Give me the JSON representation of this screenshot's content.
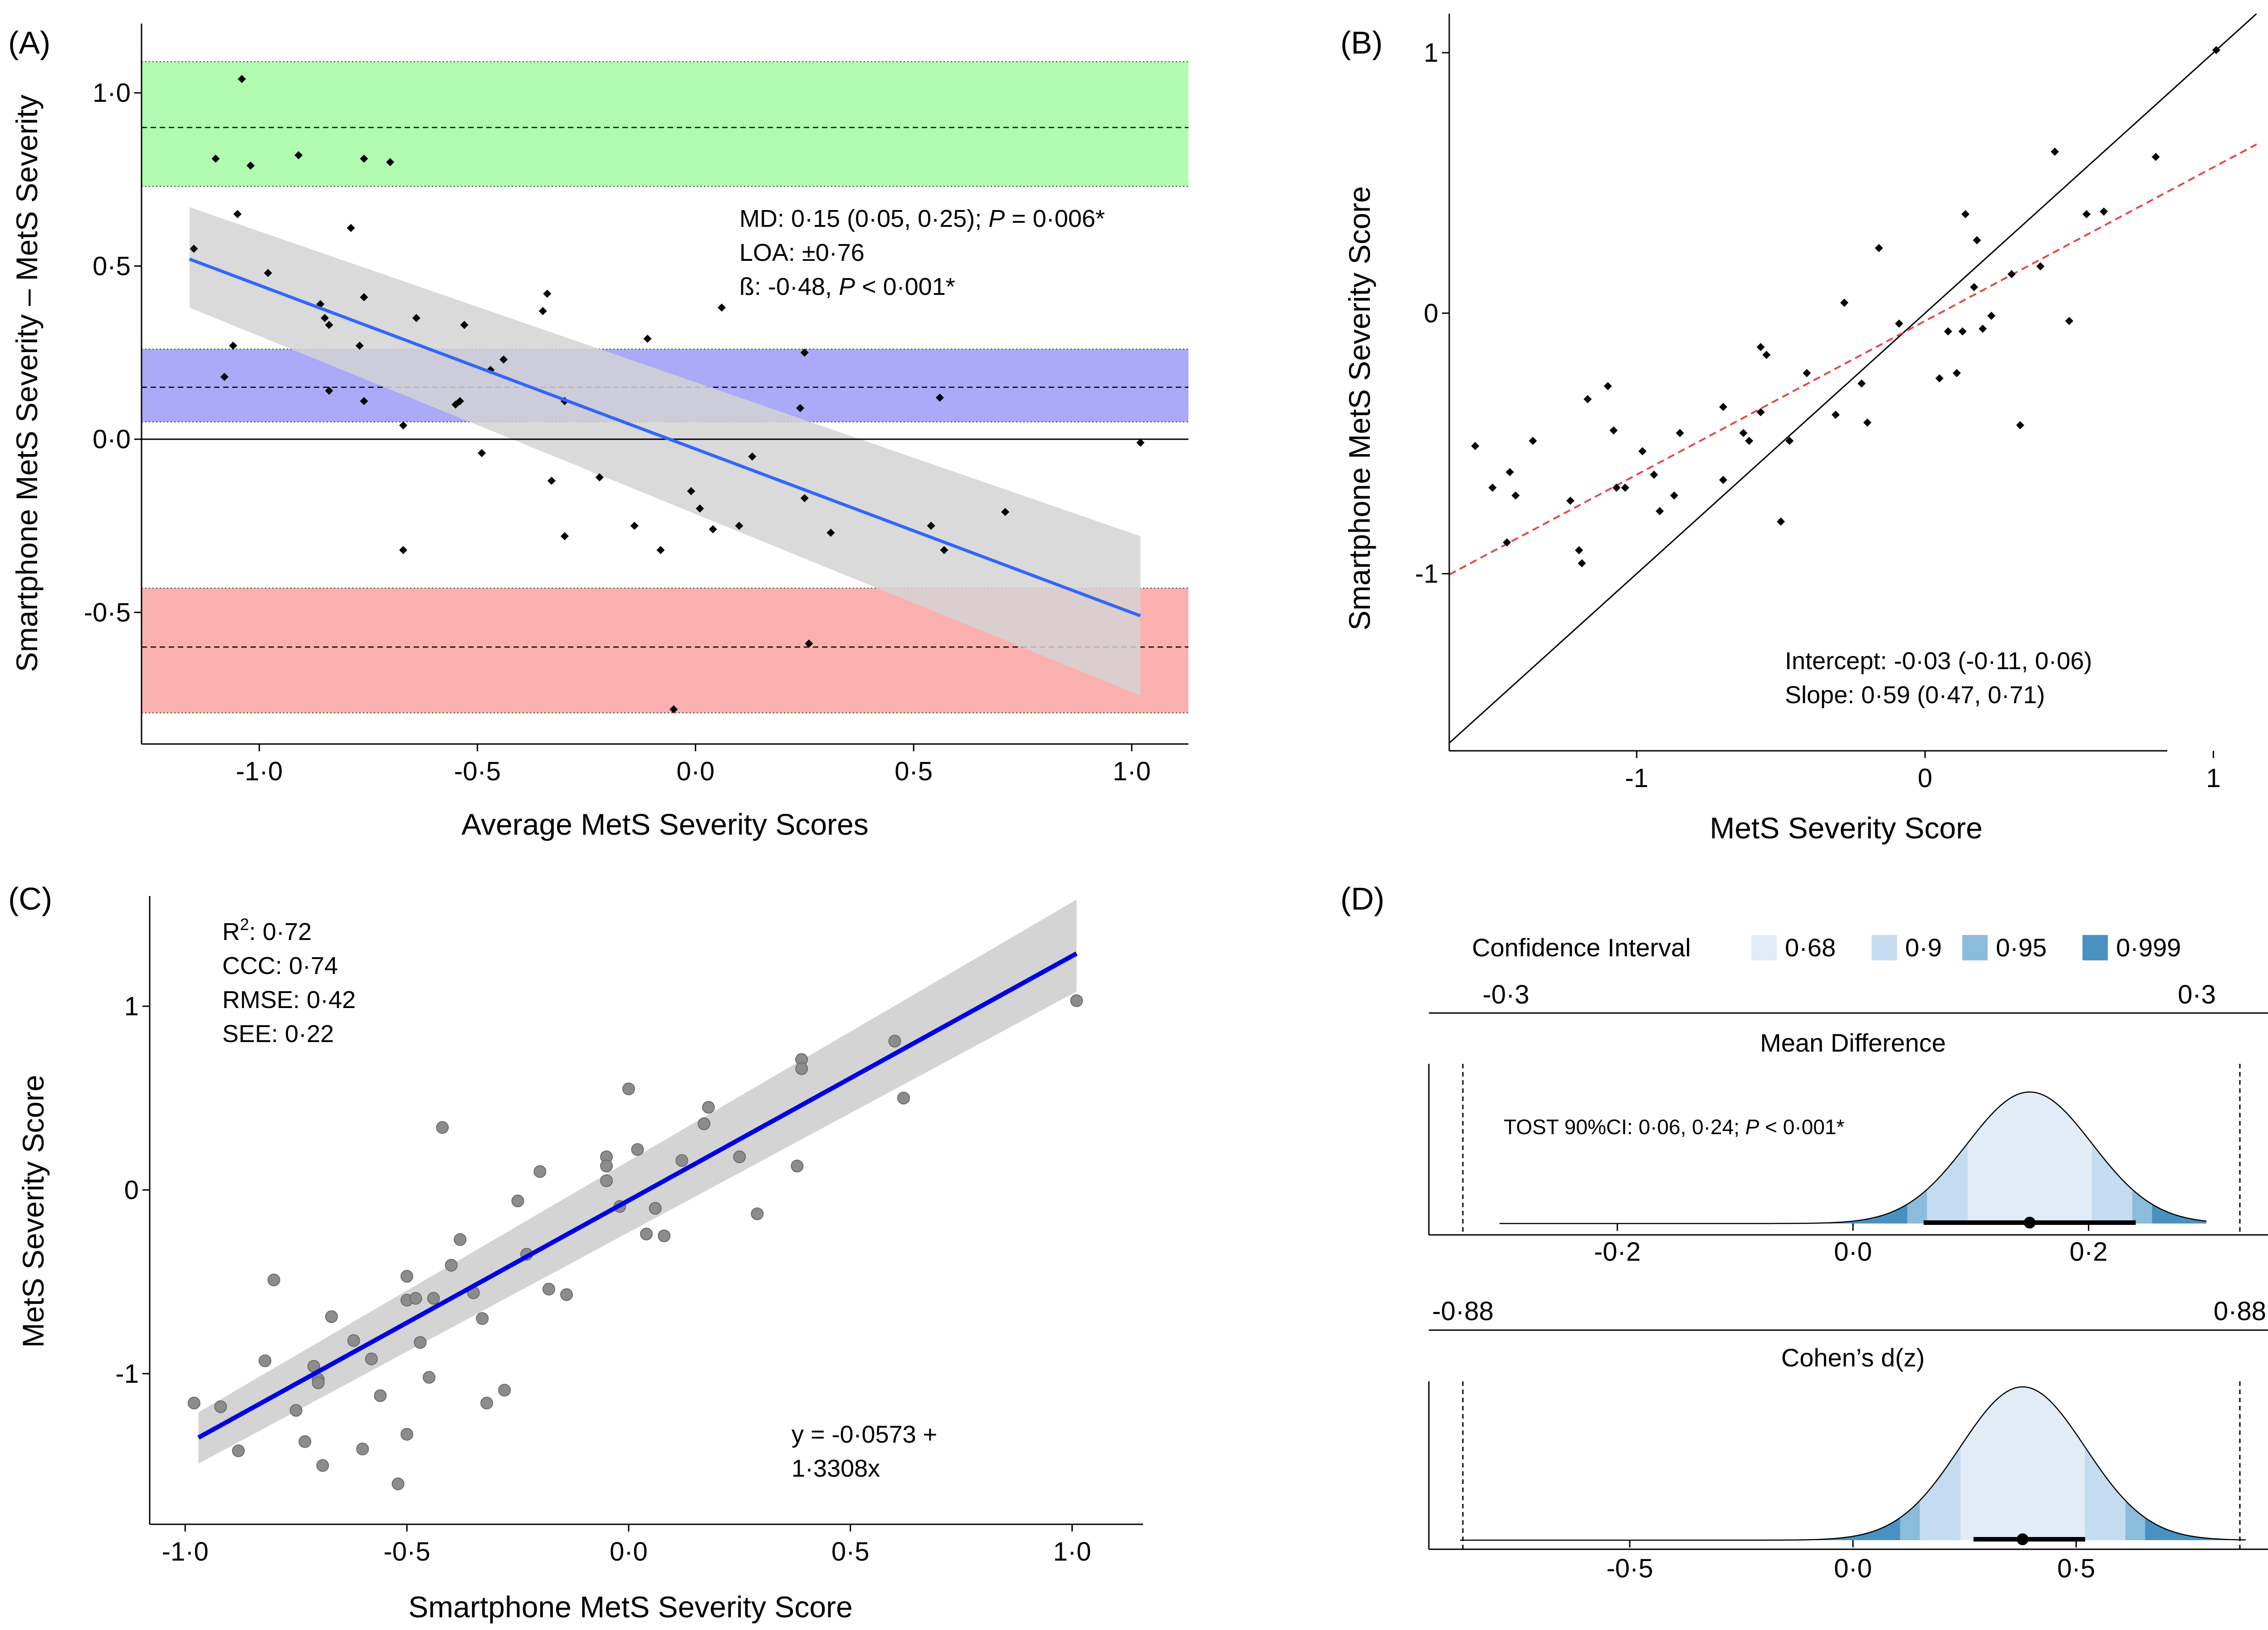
{
  "panels": {
    "A": {
      "letter": "(A)",
      "xlabel": "Average MetS Severity Scores",
      "ylabel": "Smartphone MetS Severity – MetS Severity",
      "xticks": [
        {
          "v": -1.0,
          "label": "-1·0"
        },
        {
          "v": -0.5,
          "label": "-0·5"
        },
        {
          "v": 0.0,
          "label": "0·0"
        },
        {
          "v": 0.5,
          "label": "0·5"
        },
        {
          "v": 1.0,
          "label": "1·0"
        }
      ],
      "yticks": [
        {
          "v": -0.5,
          "label": "-0·5"
        },
        {
          "v": 0.0,
          "label": "0·0"
        },
        {
          "v": 0.5,
          "label": "0·5"
        },
        {
          "v": 1.0,
          "label": "1·0"
        }
      ],
      "ann_line1_pre": "MD: 0·15 (0·05, 0·25); ",
      "ann_line1_p": "P",
      "ann_line1_post": " = 0·006*",
      "ann_line2": "LOA: ±0·76",
      "ann_line3_pre": "ß: -0·48, ",
      "ann_line3_p": "P",
      "ann_line3_post": " < 0·001*"
    },
    "B": {
      "letter": "(B)",
      "xlabel": "MetS Severity Score",
      "ylabel": "Smartphone MetS Severity Score",
      "xticks": [
        {
          "v": -1,
          "label": "-1"
        },
        {
          "v": 0,
          "label": "0"
        },
        {
          "v": 1,
          "label": "1"
        }
      ],
      "yticks": [
        {
          "v": -1,
          "label": "-1"
        },
        {
          "v": 0,
          "label": "0"
        },
        {
          "v": 1,
          "label": "1"
        }
      ],
      "ann_line1": "Intercept: -0·03 (-0·11, 0·06)",
      "ann_line2": "Slope: 0·59 (0·47, 0·71)"
    },
    "C": {
      "letter": "(C)",
      "xlabel": "Smartphone MetS Severity Score",
      "ylabel": "MetS Severity Score",
      "xticks": [
        {
          "v": -1.0,
          "label": "-1·0"
        },
        {
          "v": -0.5,
          "label": "-0·5"
        },
        {
          "v": 0.0,
          "label": "0·0"
        },
        {
          "v": 0.5,
          "label": "0·5"
        },
        {
          "v": 1.0,
          "label": "1·0"
        }
      ],
      "yticks": [
        {
          "v": -1,
          "label": "-1"
        },
        {
          "v": 0,
          "label": "0"
        },
        {
          "v": 1,
          "label": "1"
        }
      ],
      "stat_r2_pre": "R",
      "stat_r2_sup": "2",
      "stat_r2_post": ": 0·72",
      "stat_ccc": "CCC: 0·74",
      "stat_rmse": "RMSE: 0·42",
      "stat_see": "SEE: 0·22",
      "eq_line1": "y = -0·0573 +",
      "eq_line2": "1·3308x"
    },
    "D": {
      "letter": "(D)",
      "legend_title": "Confidence Interval",
      "legend_items": [
        "0·68",
        "0·9",
        "0·95",
        "0·999"
      ],
      "md_title": "Mean Difference",
      "md_top_left": "-0·3",
      "md_top_right": "0·3",
      "md_xticks": [
        {
          "v": -0.2,
          "label": "-0·2"
        },
        {
          "v": 0.0,
          "label": "0·0"
        },
        {
          "v": 0.2,
          "label": "0·2"
        }
      ],
      "md_tost_pre": "TOST 90%CI: 0·06, 0·24; ",
      "md_tost_p": "P",
      "md_tost_post": " < 0·001*",
      "d_title": "Cohen’s d(z)",
      "d_top_left": "-0·88",
      "d_top_right": "0·88",
      "d_xticks": [
        {
          "v": -0.5,
          "label": "-0·5"
        },
        {
          "v": 0.0,
          "label": "0·0"
        },
        {
          "v": 0.5,
          "label": "0·5"
        }
      ]
    }
  },
  "colors": {
    "upper_loa_band": "#b0fbb0",
    "bias_band": "#aaaaf8",
    "lower_loa_band": "#fbb0b0",
    "ribbon": "#d4d4d4",
    "fit_blue": "#3366ff",
    "fit_dark_blue": "#0000e0",
    "identity_red": "#e8453c",
    "ci_068": "#e1ecf7",
    "ci_09": "#c5dbef",
    "ci_095": "#8cbcdb",
    "ci_0999": "#4a91c2"
  },
  "chart_data": [
    {
      "panel": "A",
      "type": "scatter",
      "title": "",
      "xlabel": "Average MetS Severity Scores",
      "ylabel": "Smartphone MetS Severity – MetS Severity",
      "xlim": [
        -1.27,
        1.13
      ],
      "ylim": [
        -0.88,
        1.2
      ],
      "grid": false,
      "bands": {
        "upper_loa": {
          "mean": 0.9,
          "lo": 0.73,
          "hi": 1.09
        },
        "bias": {
          "mean": 0.15,
          "lo": 0.05,
          "hi": 0.26
        },
        "lower_loa": {
          "mean": -0.6,
          "lo": -0.79,
          "hi": -0.43
        }
      },
      "fit": {
        "x": [
          -1.16,
          1.02
        ],
        "y": [
          0.52,
          -0.51
        ],
        "ci_lo": [
          0.38,
          -0.74
        ],
        "ci_hi": [
          0.67,
          -0.28
        ]
      },
      "points": [
        [
          -1.04,
          1.04
        ],
        [
          -1.1,
          0.81
        ],
        [
          -1.02,
          0.79
        ],
        [
          -0.91,
          0.82
        ],
        [
          -0.76,
          0.81
        ],
        [
          -0.7,
          0.8
        ],
        [
          -1.15,
          0.55
        ],
        [
          -1.05,
          0.65
        ],
        [
          -0.79,
          0.61
        ],
        [
          -0.98,
          0.48
        ],
        [
          -0.86,
          0.39
        ],
        [
          -0.85,
          0.35
        ],
        [
          -0.84,
          0.33
        ],
        [
          -0.76,
          0.41
        ],
        [
          -0.77,
          0.27
        ],
        [
          -0.64,
          0.35
        ],
        [
          -0.53,
          0.33
        ],
        [
          -0.35,
          0.37
        ],
        [
          -0.34,
          0.42
        ],
        [
          -0.11,
          0.29
        ],
        [
          0.06,
          0.38
        ],
        [
          -1.08,
          0.18
        ],
        [
          -1.06,
          0.27
        ],
        [
          -0.84,
          0.14
        ],
        [
          -0.76,
          0.11
        ],
        [
          -0.54,
          0.11
        ],
        [
          -0.55,
          0.1
        ],
        [
          -0.47,
          0.2
        ],
        [
          -0.44,
          0.23
        ],
        [
          -0.3,
          0.11
        ],
        [
          0.25,
          0.25
        ],
        [
          0.24,
          0.09
        ],
        [
          0.56,
          0.12
        ],
        [
          -0.67,
          0.04
        ],
        [
          -0.49,
          -0.04
        ],
        [
          -0.33,
          -0.12
        ],
        [
          -0.22,
          -0.11
        ],
        [
          -0.3,
          -0.28
        ],
        [
          -0.14,
          -0.25
        ],
        [
          -0.08,
          -0.32
        ],
        [
          -0.01,
          -0.15
        ],
        [
          0.01,
          -0.2
        ],
        [
          0.04,
          -0.26
        ],
        [
          0.13,
          -0.05
        ],
        [
          0.1,
          -0.25
        ],
        [
          0.25,
          -0.17
        ],
        [
          0.31,
          -0.27
        ],
        [
          0.54,
          -0.25
        ],
        [
          0.57,
          -0.32
        ],
        [
          0.71,
          -0.21
        ],
        [
          1.02,
          -0.01
        ],
        [
          -0.67,
          -0.32
        ],
        [
          0.26,
          -0.59
        ],
        [
          -0.05,
          -0.78
        ]
      ]
    },
    {
      "panel": "B",
      "type": "scatter",
      "title": "",
      "xlabel": "MetS Severity Score",
      "ylabel": "Smartphone MetS Severity Score",
      "xlim": [
        -1.65,
        1.15
      ],
      "ylim": [
        -1.68,
        1.15
      ],
      "grid": false,
      "identity_line": true,
      "regression": {
        "intercept": -0.03,
        "slope": 0.59
      },
      "points": [
        [
          -1.56,
          -0.51
        ],
        [
          -1.5,
          -0.67
        ],
        [
          -1.45,
          -0.88
        ],
        [
          -1.44,
          -0.61
        ],
        [
          -1.42,
          -0.7
        ],
        [
          -1.36,
          -0.49
        ],
        [
          -1.23,
          -0.72
        ],
        [
          -1.2,
          -0.91
        ],
        [
          -1.19,
          -0.96
        ],
        [
          -1.17,
          -0.33
        ],
        [
          -1.1,
          -0.28
        ],
        [
          -1.08,
          -0.45
        ],
        [
          -1.07,
          -0.67
        ],
        [
          -1.04,
          -0.67
        ],
        [
          -0.98,
          -0.53
        ],
        [
          -0.94,
          -0.62
        ],
        [
          -0.92,
          -0.76
        ],
        [
          -0.87,
          -0.7
        ],
        [
          -0.85,
          -0.46
        ],
        [
          -0.7,
          -0.36
        ],
        [
          -0.7,
          -0.64
        ],
        [
          -0.63,
          -0.46
        ],
        [
          -0.61,
          -0.49
        ],
        [
          -0.57,
          -0.38
        ],
        [
          -0.57,
          -0.13
        ],
        [
          -0.55,
          -0.16
        ],
        [
          -0.5,
          -0.8
        ],
        [
          -0.47,
          -0.49
        ],
        [
          -0.41,
          -0.23
        ],
        [
          -0.31,
          -0.39
        ],
        [
          -0.28,
          0.04
        ],
        [
          -0.22,
          -0.27
        ],
        [
          -0.2,
          -0.42
        ],
        [
          -0.16,
          0.25
        ],
        [
          -0.09,
          -0.04
        ],
        [
          0.05,
          -0.25
        ],
        [
          0.08,
          -0.07
        ],
        [
          0.11,
          -0.23
        ],
        [
          0.13,
          -0.07
        ],
        [
          0.14,
          0.38
        ],
        [
          0.17,
          0.1
        ],
        [
          0.18,
          0.28
        ],
        [
          0.2,
          -0.06
        ],
        [
          0.23,
          -0.01
        ],
        [
          0.3,
          0.15
        ],
        [
          0.33,
          -0.43
        ],
        [
          0.4,
          0.18
        ],
        [
          0.45,
          0.62
        ],
        [
          0.5,
          -0.03
        ],
        [
          0.56,
          0.38
        ],
        [
          0.62,
          0.39
        ],
        [
          0.8,
          0.6
        ],
        [
          1.01,
          1.01
        ]
      ]
    },
    {
      "panel": "C",
      "type": "scatter",
      "title": "",
      "xlabel": "Smartphone MetS Severity Score",
      "ylabel": "MetS Severity Score",
      "xlim": [
        -1.08,
        1.16
      ],
      "ylim": [
        -1.82,
        1.6
      ],
      "grid": false,
      "fit": {
        "intercept": -0.0573,
        "slope": 1.3308,
        "x": [
          -0.97,
          1.01
        ],
        "ci_lo": [
          -1.49,
          1.08
        ],
        "ci_hi": [
          -1.21,
          1.58
        ]
      },
      "points": [
        [
          -0.98,
          -1.16
        ],
        [
          -0.92,
          -1.18
        ],
        [
          -0.88,
          -1.42
        ],
        [
          -0.82,
          -0.93
        ],
        [
          -0.8,
          -0.49
        ],
        [
          -0.75,
          -1.2
        ],
        [
          -0.73,
          -1.37
        ],
        [
          -0.71,
          -0.96
        ],
        [
          -0.7,
          -1.03
        ],
        [
          -0.7,
          -1.05
        ],
        [
          -0.69,
          -1.5
        ],
        [
          -0.67,
          -0.69
        ],
        [
          -0.62,
          -0.82
        ],
        [
          -0.6,
          -1.41
        ],
        [
          -0.58,
          -0.92
        ],
        [
          -0.56,
          -1.12
        ],
        [
          -0.52,
          -1.6
        ],
        [
          -0.5,
          -0.6
        ],
        [
          -0.5,
          -0.47
        ],
        [
          -0.5,
          -1.33
        ],
        [
          -0.48,
          -0.59
        ],
        [
          -0.47,
          -0.83
        ],
        [
          -0.45,
          -1.02
        ],
        [
          -0.44,
          -0.59
        ],
        [
          -0.42,
          0.34
        ],
        [
          -0.4,
          -0.41
        ],
        [
          -0.38,
          -0.27
        ],
        [
          -0.35,
          -0.56
        ],
        [
          -0.33,
          -0.7
        ],
        [
          -0.32,
          -1.16
        ],
        [
          -0.28,
          -1.09
        ],
        [
          -0.25,
          -0.06
        ],
        [
          -0.23,
          -0.35
        ],
        [
          -0.2,
          0.1
        ],
        [
          -0.18,
          -0.54
        ],
        [
          -0.14,
          -0.57
        ],
        [
          -0.05,
          0.18
        ],
        [
          -0.05,
          0.13
        ],
        [
          -0.05,
          0.05
        ],
        [
          -0.02,
          -0.09
        ],
        [
          0.0,
          0.55
        ],
        [
          0.02,
          0.22
        ],
        [
          0.04,
          -0.24
        ],
        [
          0.06,
          -0.1
        ],
        [
          0.08,
          -0.25
        ],
        [
          0.12,
          0.16
        ],
        [
          0.17,
          0.36
        ],
        [
          0.18,
          0.45
        ],
        [
          0.25,
          0.18
        ],
        [
          0.29,
          -0.13
        ],
        [
          0.38,
          0.13
        ],
        [
          0.39,
          0.71
        ],
        [
          0.39,
          0.66
        ],
        [
          0.6,
          0.81
        ],
        [
          0.62,
          0.5
        ],
        [
          1.01,
          1.03
        ]
      ]
    },
    {
      "panel": "D",
      "type": "area",
      "subplots": [
        {
          "title": "Mean Difference",
          "estimate": 0.15,
          "se": 0.053,
          "bounds": [
            -0.3,
            0.3
          ],
          "tost_ci": [
            0.06,
            0.24
          ],
          "xlim": [
            -0.36,
            0.36
          ]
        },
        {
          "title": "Cohen’s d(z)",
          "estimate": 0.38,
          "se": 0.14,
          "bounds": [
            -0.88,
            0.88
          ],
          "tost_ci": [
            0.27,
            0.52
          ],
          "xlim": [
            -0.95,
            0.95
          ]
        }
      ],
      "levels": [
        0.68,
        0.9,
        0.95,
        0.999
      ]
    }
  ]
}
